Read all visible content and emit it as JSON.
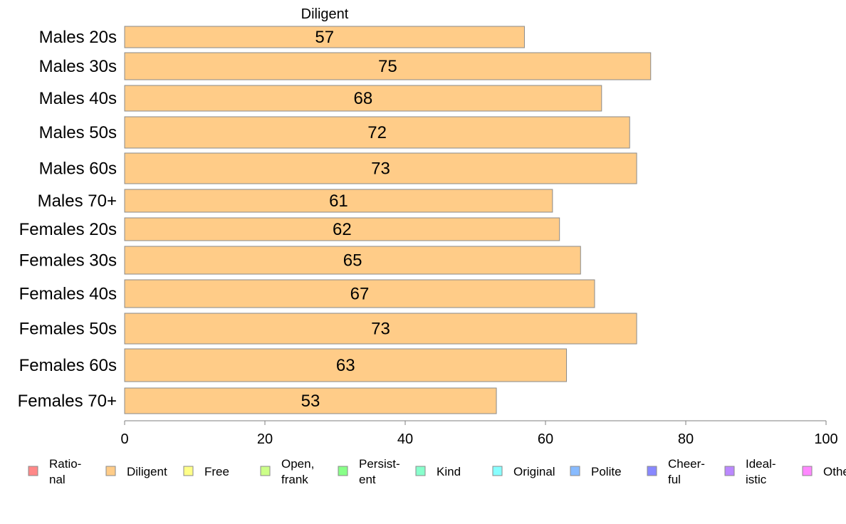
{
  "chart_data": {
    "type": "bar",
    "orientation": "horizontal",
    "title": "Diligent",
    "categories": [
      "Males 20s",
      "Males 30s",
      "Males 40s",
      "Males 50s",
      "Males 60s",
      "Males 70+",
      "Females 20s",
      "Females 30s",
      "Females 40s",
      "Females 50s",
      "Females 60s",
      "Females 70+"
    ],
    "values": [
      57,
      75,
      68,
      72,
      73,
      61,
      62,
      65,
      67,
      73,
      63,
      53
    ],
    "bar_color": "#FFCC88",
    "bar_stroke": "#8a8a8a",
    "xlim": [
      0,
      100
    ],
    "xticks": [
      0,
      20,
      40,
      60,
      80,
      100
    ],
    "grid": false,
    "legend_placement": "bottom",
    "legend": [
      {
        "lines": [
          "Ratio-",
          "nal"
        ],
        "color": "#FF8888"
      },
      {
        "lines": [
          "Diligent"
        ],
        "color": "#FFCC88"
      },
      {
        "lines": [
          "Free"
        ],
        "color": "#FFFF88"
      },
      {
        "lines": [
          "Open,",
          "frank"
        ],
        "color": "#CCFF88"
      },
      {
        "lines": [
          "Persist-",
          "ent"
        ],
        "color": "#88FF88"
      },
      {
        "lines": [
          "Kind"
        ],
        "color": "#88FFCC"
      },
      {
        "lines": [
          "Original"
        ],
        "color": "#88FFFF"
      },
      {
        "lines": [
          "Polite"
        ],
        "color": "#88BBFF"
      },
      {
        "lines": [
          "Cheer-",
          "ful"
        ],
        "color": "#8888FF"
      },
      {
        "lines": [
          "Ideal-",
          "istic"
        ],
        "color": "#BB88FF"
      },
      {
        "lines": [
          "Other"
        ],
        "color": "#FF88FF"
      }
    ]
  }
}
